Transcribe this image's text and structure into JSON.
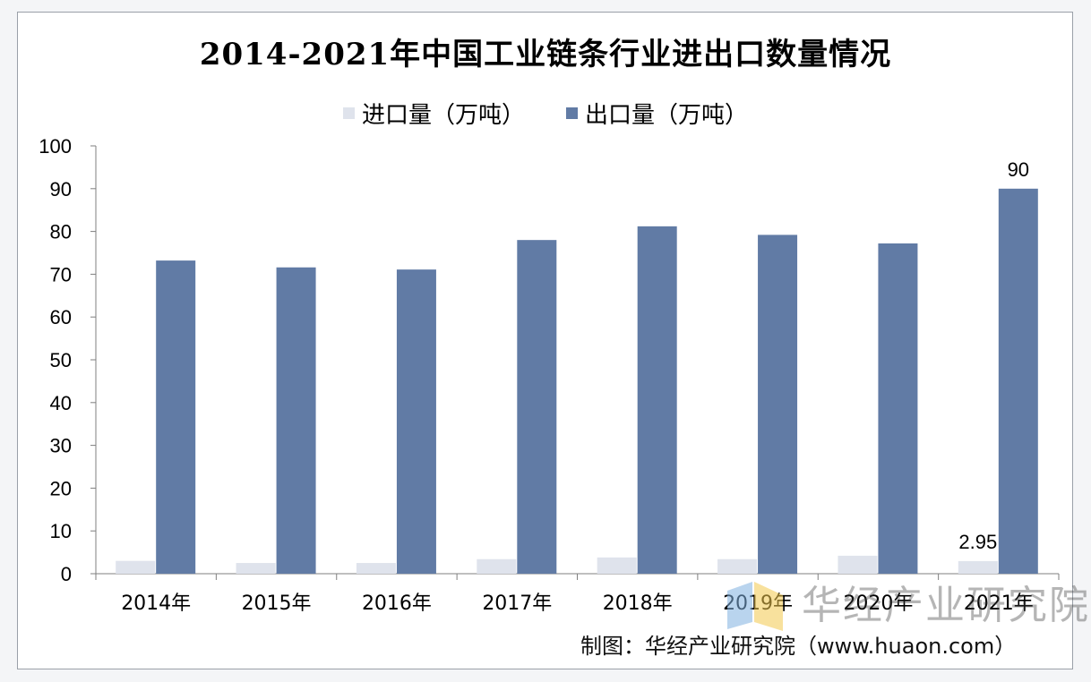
{
  "colors": {
    "import": "#dfe3ec",
    "export": "#617ba5",
    "axis": "#7f7f7f",
    "text": "#000000"
  },
  "watermark": {
    "text": "华经产业研究院",
    "url": "www.huaon.com",
    "logo_icon": "huajing-logo-icon"
  },
  "source": "制图：华经产业研究院（www.huaon.com）",
  "chart_data": {
    "type": "bar",
    "title": "2014-2021年中国工业链条行业进出口数量情况",
    "categories": [
      "2014年",
      "2015年",
      "2016年",
      "2017年",
      "2018年",
      "2019年",
      "2020年",
      "2021年"
    ],
    "series": [
      {
        "name": "进口量（万吨）",
        "values": [
          3.0,
          2.5,
          2.5,
          3.4,
          3.8,
          3.4,
          4.2,
          2.95
        ]
      },
      {
        "name": "出口量（万吨）",
        "values": [
          73.2,
          71.6,
          71.1,
          78.0,
          81.2,
          79.2,
          77.2,
          90
        ]
      }
    ],
    "data_labels": [
      {
        "series": 0,
        "index": 7,
        "text": "2.95"
      },
      {
        "series": 1,
        "index": 7,
        "text": "90"
      }
    ],
    "ylim": [
      0,
      100
    ],
    "yticks": [
      "0",
      "10",
      "20",
      "30",
      "40",
      "50",
      "60",
      "70",
      "80",
      "90",
      "100"
    ],
    "xlabel": "",
    "ylabel": "",
    "legend": "top-center",
    "grid": false
  }
}
